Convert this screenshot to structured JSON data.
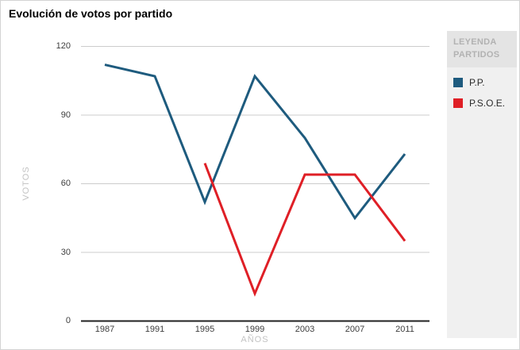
{
  "chart_data": {
    "type": "line",
    "title": "Evolución de votos por partido",
    "xlabel": "AÑOS",
    "ylabel": "VOTOS",
    "x": [
      "1987",
      "1991",
      "1995",
      "1999",
      "2003",
      "2007",
      "2011"
    ],
    "yticks": [
      0,
      30,
      60,
      90,
      120
    ],
    "ylim": [
      0,
      120
    ],
    "grid": "horizontal",
    "legend_position": "right",
    "series": [
      {
        "name": "P.P.",
        "color": "#1e5b7e",
        "values": [
          112,
          107,
          52,
          107,
          80,
          45,
          73
        ]
      },
      {
        "name": "P.S.O.E.",
        "color": "#df1f26",
        "values": [
          null,
          null,
          69,
          12,
          64,
          64,
          35
        ]
      }
    ]
  },
  "legend": {
    "header": "LEYENDA PARTIDOS",
    "items": [
      {
        "label": "P.P.",
        "color": "#1e5b7e"
      },
      {
        "label": "P.S.O.E.",
        "color": "#df1f26"
      }
    ]
  },
  "colors": {
    "grid_line": "#cccccc",
    "axis_line": "#222222",
    "tick_label": "#3d3d3d",
    "muted_label": "#c3c3c3",
    "legend_bg": "#f0f0f0",
    "legend_header_bg": "#e4e4e4",
    "legend_header_text": "#b2b2b2"
  }
}
